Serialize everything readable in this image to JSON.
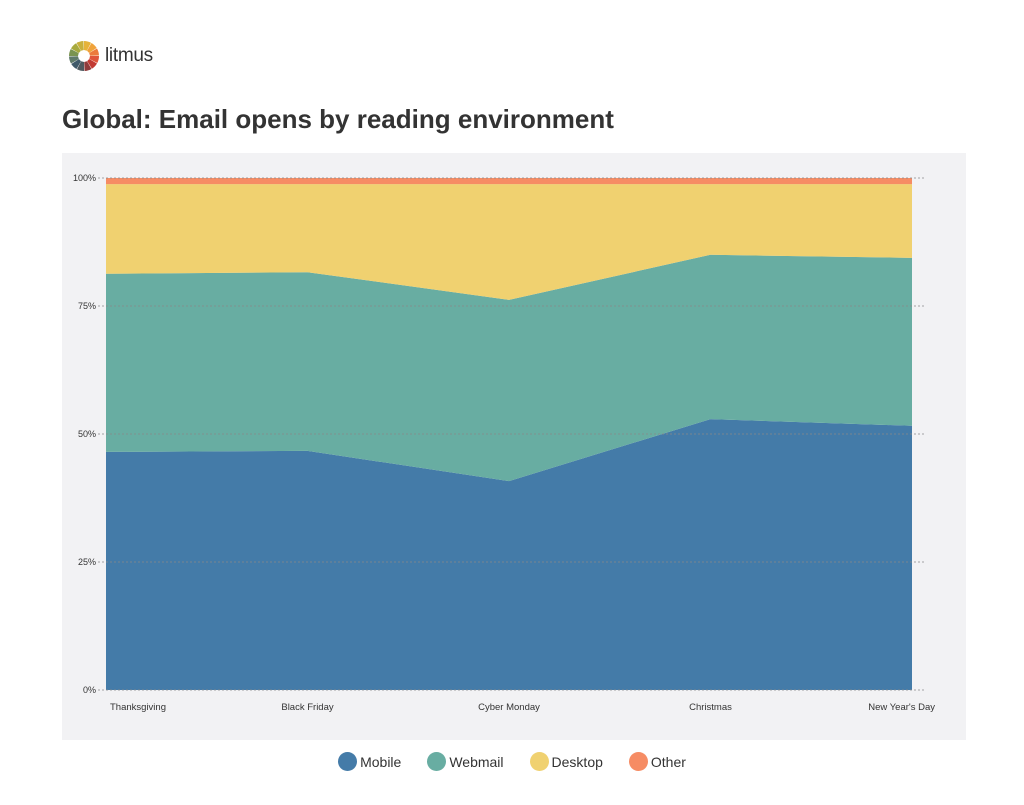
{
  "brand": {
    "name": "litmus"
  },
  "chart_data": {
    "type": "area",
    "stacked": true,
    "title": "Global: Email opens by reading environment",
    "categories": [
      "Thanksgiving",
      "Black Friday",
      "Cyber Monday",
      "Christmas",
      "New Year's Day"
    ],
    "yticks": [
      "0%",
      "25%",
      "50%",
      "75%",
      "100%"
    ],
    "ylim": [
      0,
      100
    ],
    "grid": true,
    "legend_position": "bottom",
    "series": [
      {
        "name": "Mobile",
        "color": "#447ba8",
        "values": [
          46.5,
          46.7,
          40.8,
          52.9,
          51.6
        ]
      },
      {
        "name": "Webmail",
        "color": "#68ada2",
        "values": [
          34.8,
          34.9,
          35.4,
          32.1,
          32.8
        ]
      },
      {
        "name": "Desktop",
        "color": "#f0d170",
        "values": [
          17.5,
          17.2,
          22.6,
          13.8,
          14.4
        ]
      },
      {
        "name": "Other",
        "color": "#f68c64",
        "values": [
          1.2,
          1.2,
          1.2,
          1.2,
          1.2
        ]
      }
    ]
  }
}
